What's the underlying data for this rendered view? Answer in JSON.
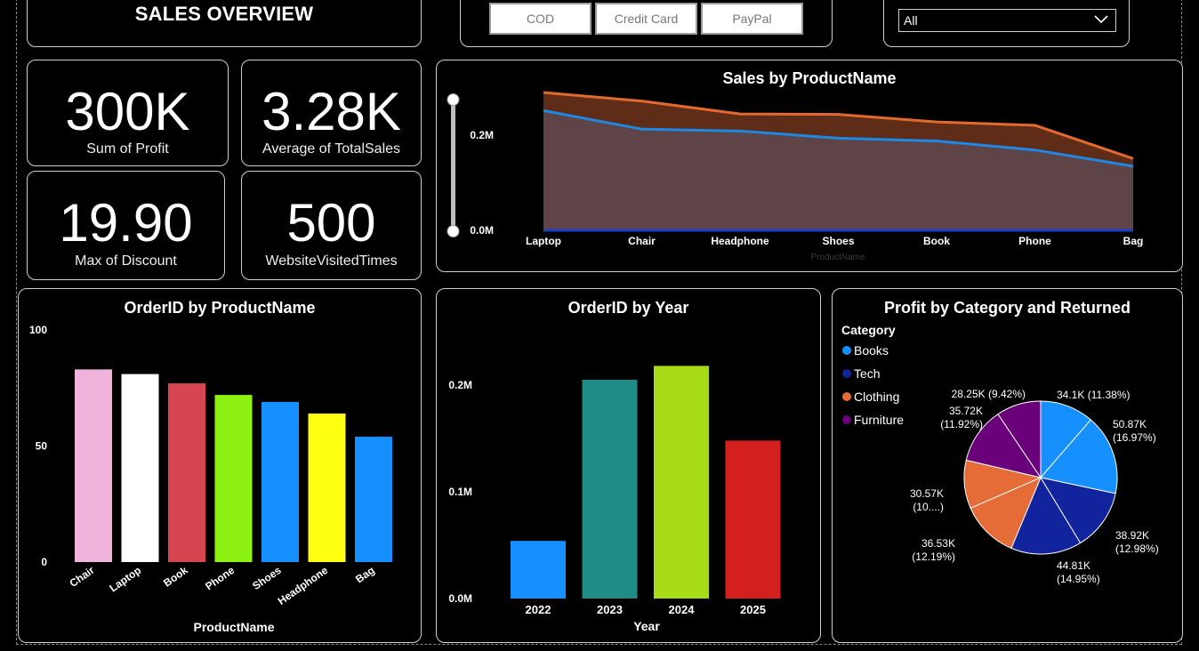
{
  "header": {
    "title": "SALES OVERVIEW"
  },
  "payment_slicer": {
    "options": [
      "COD",
      "Credit Card",
      "PayPal"
    ]
  },
  "dropdown": {
    "selected": "All"
  },
  "kpis": [
    {
      "value": "300K",
      "label": "Sum of Profit"
    },
    {
      "value": "3.28K",
      "label": "Average of TotalSales"
    },
    {
      "value": "19.90",
      "label": "Max of Discount"
    },
    {
      "value": "500",
      "label": "WebsiteVisitedTimes"
    }
  ],
  "chart_data": [
    {
      "type": "area",
      "title": "Sales by ProductName",
      "xlabel": "ProductName",
      "ylabel": "",
      "categories": [
        "Laptop",
        "Chair",
        "Headphone",
        "Shoes",
        "Book",
        "Phone",
        "Bag"
      ],
      "series": [
        {
          "values": [
            0.29,
            0.272,
            0.245,
            0.244,
            0.228,
            0.221,
            0.151
          ],
          "color": "#e36a2e"
        },
        {
          "values": [
            0.252,
            0.213,
            0.209,
            0.194,
            0.188,
            0.169,
            0.135
          ],
          "color": "#1e88e5"
        }
      ],
      "yticks": [
        0.0,
        0.2
      ],
      "ytick_labels": [
        "0.0M",
        "0.2M"
      ],
      "ylim": [
        0,
        0.32
      ]
    },
    {
      "type": "bar",
      "title": "OrderID by ProductName",
      "xlabel": "ProductName",
      "ylabel": "",
      "categories": [
        "Chair",
        "Laptop",
        "Book",
        "Phone",
        "Shoes",
        "Headphone",
        "Bag"
      ],
      "values": [
        83,
        81,
        77,
        72,
        69,
        64,
        54
      ],
      "colors": [
        "#f0b4dc",
        "#ffffff",
        "#d64550",
        "#8df212",
        "#1690ff",
        "#ffff12",
        "#1690ff"
      ],
      "yticks": [
        0,
        50,
        100
      ],
      "ylim": [
        0,
        100
      ]
    },
    {
      "type": "bar",
      "title": "OrderID by Year",
      "xlabel": "Year",
      "ylabel": "",
      "categories": [
        "2022",
        "2023",
        "2024",
        "2025"
      ],
      "values": [
        0.054,
        0.205,
        0.218,
        0.148
      ],
      "colors": [
        "#1690ff",
        "#1f8c88",
        "#a8db18",
        "#d41f1f"
      ],
      "yticks": [
        0.0,
        0.1,
        0.2
      ],
      "ytick_labels": [
        "0.0M",
        "0.1M",
        "0.2M"
      ],
      "ylim": [
        0,
        0.22
      ]
    },
    {
      "type": "pie",
      "title": "Profit by Category and Returned",
      "legend_title": "Category",
      "legend": [
        {
          "name": "Books",
          "color": "#1690ff"
        },
        {
          "name": "Tech",
          "color": "#12239e"
        },
        {
          "name": "Clothing",
          "color": "#e66c37"
        },
        {
          "name": "Furniture",
          "color": "#6b007b"
        }
      ],
      "slices": [
        {
          "category": "Books",
          "value": 34.1,
          "label": "34.1K (11.38%)",
          "color": "#1690ff"
        },
        {
          "category": "Books",
          "value": 50.87,
          "label": "50.87K (16.97%)",
          "color": "#1690ff"
        },
        {
          "category": "Tech",
          "value": 38.92,
          "label": "38.92K (12.98%)",
          "color": "#12239e"
        },
        {
          "category": "Tech",
          "value": 44.81,
          "label": "44.81K (14.95%)",
          "color": "#12239e"
        },
        {
          "category": "Clothing",
          "value": 36.53,
          "label": "36.53K (12.19%)",
          "color": "#e66c37"
        },
        {
          "category": "Clothing",
          "value": 30.57,
          "label": "30.57K (10....)",
          "color": "#e66c37"
        },
        {
          "category": "Furniture",
          "value": 35.72,
          "label": "35.72K (11.92%)",
          "color": "#6b007b"
        },
        {
          "category": "Furniture",
          "value": 28.25,
          "label": "28.25K (9.42%)",
          "color": "#6b007b"
        }
      ]
    }
  ]
}
